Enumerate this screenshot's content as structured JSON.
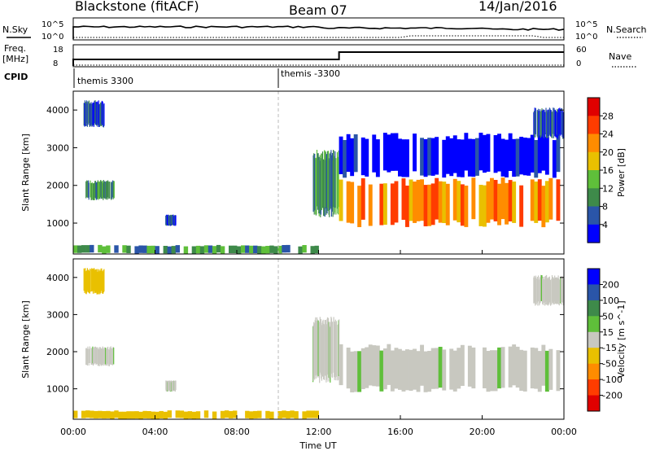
{
  "header": {
    "title": "Blackstone (fitACF)",
    "beam": "Beam 07",
    "date": "14/Jan/2016"
  },
  "panels": {
    "nsky_label": "N.Sky",
    "nsearch_label": "N.Search",
    "nsky_ticks": [
      "10^5",
      "10^0"
    ],
    "freq_label": "Freq.",
    "freq_unit": "[MHz]",
    "freq_ticks": [
      "18",
      "8"
    ],
    "nave_label": "Nave",
    "nave_ticks": [
      "60",
      "0"
    ],
    "cpid_label": "CPID",
    "cpid_segments": [
      "themis 3300",
      "themis -3300"
    ]
  },
  "colors": {
    "power_scale": [
      "#0000ff",
      "#2a55a8",
      "#3e8a4a",
      "#5fbf3a",
      "#e9c000",
      "#ff8c00",
      "#ff3c00",
      "#e00000"
    ],
    "velocity_scale": [
      "#0000ff",
      "#2a55a8",
      "#3e8a4a",
      "#5fbf3a",
      "#c8c8c0",
      "#e9c000",
      "#ff8c00",
      "#ff3c00",
      "#e00000"
    ],
    "ground_grey": "#c8c8c0"
  },
  "chart_data": [
    {
      "type": "heatmap",
      "parameter": "Power",
      "ylabel": "Slant Range [km]",
      "xlabel": "Time UT",
      "x_ticks": [
        "00:00",
        "04:00",
        "08:00",
        "12:00",
        "16:00",
        "20:00",
        "00:00"
      ],
      "xlim_hours": [
        0,
        24
      ],
      "y_ticks": [
        1000,
        2000,
        3000,
        4000
      ],
      "ylim": [
        180,
        4500
      ],
      "colorbar": {
        "label": "Power [dB]",
        "ticks": [
          4,
          8,
          12,
          16,
          20,
          24,
          28
        ]
      },
      "echo_regions": [
        {
          "t": [
            0.6,
            2.0
          ],
          "range": [
            1650,
            2100
          ],
          "power_db": 12
        },
        {
          "t": [
            0.5,
            1.5
          ],
          "range": [
            3600,
            4200
          ],
          "power_db": 6
        },
        {
          "t": [
            4.5,
            5.0
          ],
          "range": [
            950,
            1200
          ],
          "power_db": 8
        },
        {
          "t": [
            0.0,
            12.0
          ],
          "range": [
            200,
            400
          ],
          "power_db": 10
        },
        {
          "t": [
            11.7,
            13.0
          ],
          "range": [
            1300,
            2800
          ],
          "power_db": 10
        },
        {
          "t": [
            13.0,
            23.8
          ],
          "range": [
            1000,
            2100
          ],
          "power_db": 24
        },
        {
          "t": [
            13.0,
            23.8
          ],
          "range": [
            2300,
            3300
          ],
          "power_db": 4
        },
        {
          "t": [
            22.5,
            24.0
          ],
          "range": [
            3300,
            4000
          ],
          "power_db": 6
        }
      ]
    },
    {
      "type": "heatmap",
      "parameter": "Velocity",
      "ylabel": "Slant Range [km]",
      "xlabel": "Time UT",
      "x_ticks": [
        "00:00",
        "04:00",
        "08:00",
        "12:00",
        "16:00",
        "20:00",
        "00:00"
      ],
      "xlim_hours": [
        0,
        24
      ],
      "y_ticks": [
        1000,
        2000,
        3000,
        4000
      ],
      "ylim": [
        180,
        4500
      ],
      "colorbar": {
        "label": "Velocity [m s^-1]",
        "ticks": [
          200,
          100,
          50,
          15,
          -15,
          -50,
          -100,
          -200
        ]
      },
      "echo_regions": [
        {
          "t": [
            0.6,
            2.0
          ],
          "range": [
            1650,
            2100
          ],
          "velocity": 0
        },
        {
          "t": [
            0.5,
            1.5
          ],
          "range": [
            3600,
            4200
          ],
          "velocity": -30
        },
        {
          "t": [
            4.5,
            5.0
          ],
          "range": [
            950,
            1200
          ],
          "velocity": 0
        },
        {
          "t": [
            0.0,
            12.0
          ],
          "range": [
            200,
            400
          ],
          "velocity": -40
        },
        {
          "t": [
            11.7,
            13.0
          ],
          "range": [
            1300,
            2800
          ],
          "velocity": 0
        },
        {
          "t": [
            13.0,
            23.8
          ],
          "range": [
            1000,
            2100
          ],
          "velocity": 0
        },
        {
          "t": [
            22.5,
            24.0
          ],
          "range": [
            3300,
            4000
          ],
          "velocity": 0
        }
      ]
    }
  ]
}
